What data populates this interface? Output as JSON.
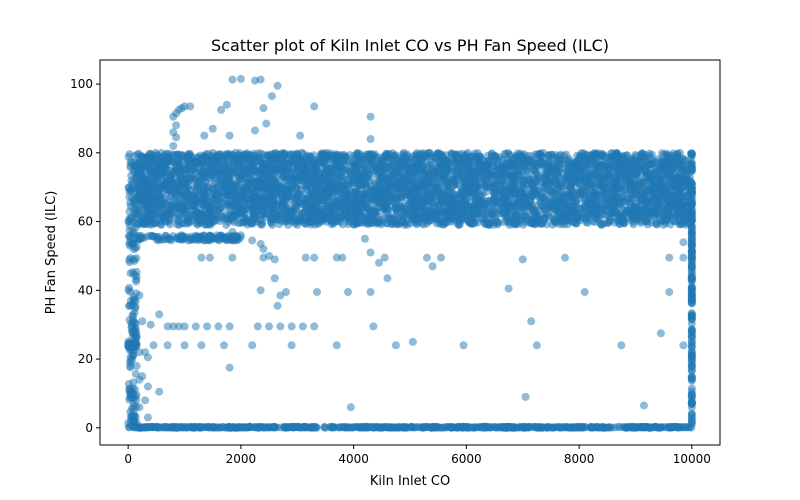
{
  "chart_data": {
    "type": "scatter",
    "title": "Scatter plot of Kiln Inlet CO vs PH Fan Speed (ILC)",
    "xlabel": "Kiln Inlet CO",
    "ylabel": "PH Fan Speed (ILC)",
    "xlim": [
      -500,
      10500
    ],
    "ylim": [
      -5,
      107
    ],
    "xticks": [
      0,
      2000,
      4000,
      6000,
      8000,
      10000
    ],
    "yticks": [
      0,
      20,
      40,
      60,
      80,
      100
    ],
    "grid": false,
    "legend": "none",
    "color": "#1f77b4",
    "alpha": 0.5,
    "marker": "circle",
    "bands": [
      {
        "x": [
          80,
          10000
        ],
        "y": [
          0,
          0.3
        ],
        "count": 700
      },
      {
        "x": [
          0,
          150
        ],
        "y": [
          0,
          80
        ],
        "count": 180
      },
      {
        "x": [
          10000,
          10000
        ],
        "y": [
          0,
          80
        ],
        "count": 180
      },
      {
        "x": [
          150,
          10000
        ],
        "y": [
          62,
          80
        ],
        "count": 4500
      },
      {
        "x": [
          150,
          10000
        ],
        "y": [
          59,
          62
        ],
        "count": 700
      },
      {
        "x": [
          150,
          2000
        ],
        "y": [
          54.5,
          56
        ],
        "count": 120
      },
      {
        "x": [
          0,
          150
        ],
        "y": [
          23.5,
          24.5
        ],
        "count": 40
      }
    ],
    "points": [
      {
        "x": 2000,
        "y": 101.5
      },
      {
        "x": 2250,
        "y": 101
      },
      {
        "x": 1850,
        "y": 101.3
      },
      {
        "x": 2350,
        "y": 101.3
      },
      {
        "x": 2650,
        "y": 99.5
      },
      {
        "x": 2550,
        "y": 96.5
      },
      {
        "x": 1750,
        "y": 94
      },
      {
        "x": 3300,
        "y": 93.5
      },
      {
        "x": 2400,
        "y": 93
      },
      {
        "x": 1650,
        "y": 92.5
      },
      {
        "x": 4300,
        "y": 90.5
      },
      {
        "x": 2450,
        "y": 88.5
      },
      {
        "x": 2250,
        "y": 86.5
      },
      {
        "x": 1800,
        "y": 85
      },
      {
        "x": 3050,
        "y": 85
      },
      {
        "x": 1000,
        "y": 93.5
      },
      {
        "x": 1100,
        "y": 93.5
      },
      {
        "x": 950,
        "y": 93
      },
      {
        "x": 900,
        "y": 92.5
      },
      {
        "x": 850,
        "y": 91.5
      },
      {
        "x": 800,
        "y": 90.5
      },
      {
        "x": 850,
        "y": 88
      },
      {
        "x": 800,
        "y": 86
      },
      {
        "x": 850,
        "y": 84.5
      },
      {
        "x": 1350,
        "y": 85
      },
      {
        "x": 1500,
        "y": 87
      },
      {
        "x": 4300,
        "y": 84
      },
      {
        "x": 800,
        "y": 82
      },
      {
        "x": 1850,
        "y": 57
      },
      {
        "x": 2000,
        "y": 56
      },
      {
        "x": 1900,
        "y": 54.5
      },
      {
        "x": 2200,
        "y": 54.5
      },
      {
        "x": 2350,
        "y": 53.5
      },
      {
        "x": 2400,
        "y": 52
      },
      {
        "x": 2500,
        "y": 50
      },
      {
        "x": 2600,
        "y": 49
      },
      {
        "x": 2400,
        "y": 49.5
      },
      {
        "x": 1300,
        "y": 49.5
      },
      {
        "x": 1450,
        "y": 49.5
      },
      {
        "x": 1850,
        "y": 49.5
      },
      {
        "x": 3150,
        "y": 49.5
      },
      {
        "x": 3300,
        "y": 49.5
      },
      {
        "x": 3700,
        "y": 49.5
      },
      {
        "x": 3800,
        "y": 49.5
      },
      {
        "x": 4200,
        "y": 55
      },
      {
        "x": 4300,
        "y": 51
      },
      {
        "x": 4450,
        "y": 48
      },
      {
        "x": 4550,
        "y": 49.5
      },
      {
        "x": 5300,
        "y": 49.5
      },
      {
        "x": 5400,
        "y": 47
      },
      {
        "x": 5550,
        "y": 49.5
      },
      {
        "x": 4600,
        "y": 43.5
      },
      {
        "x": 2600,
        "y": 43.5
      },
      {
        "x": 2700,
        "y": 38.5
      },
      {
        "x": 2800,
        "y": 39.5
      },
      {
        "x": 2650,
        "y": 35.5
      },
      {
        "x": 2350,
        "y": 40
      },
      {
        "x": 3350,
        "y": 39.5
      },
      {
        "x": 3900,
        "y": 39.5
      },
      {
        "x": 4300,
        "y": 39.5
      },
      {
        "x": 6750,
        "y": 40.5
      },
      {
        "x": 8100,
        "y": 39.5
      },
      {
        "x": 9600,
        "y": 39.5
      },
      {
        "x": 7000,
        "y": 49
      },
      {
        "x": 7750,
        "y": 49.5
      },
      {
        "x": 9600,
        "y": 49.5
      },
      {
        "x": 9850,
        "y": 49.5
      },
      {
        "x": 9850,
        "y": 54
      },
      {
        "x": 4350,
        "y": 29.5
      },
      {
        "x": 7150,
        "y": 31
      },
      {
        "x": 9450,
        "y": 27.5
      },
      {
        "x": 3700,
        "y": 24
      },
      {
        "x": 4750,
        "y": 24
      },
      {
        "x": 5050,
        "y": 25
      },
      {
        "x": 5950,
        "y": 24
      },
      {
        "x": 7250,
        "y": 24
      },
      {
        "x": 8750,
        "y": 24
      },
      {
        "x": 9850,
        "y": 24
      },
      {
        "x": 1300,
        "y": 24
      },
      {
        "x": 1700,
        "y": 24
      },
      {
        "x": 2200,
        "y": 24
      },
      {
        "x": 2900,
        "y": 24
      },
      {
        "x": 700,
        "y": 24
      },
      {
        "x": 1000,
        "y": 24
      },
      {
        "x": 450,
        "y": 24
      },
      {
        "x": 1800,
        "y": 17.5
      },
      {
        "x": 7050,
        "y": 9
      },
      {
        "x": 3950,
        "y": 6
      },
      {
        "x": 9150,
        "y": 6.5
      },
      {
        "x": 700,
        "y": 29.5
      },
      {
        "x": 800,
        "y": 29.5
      },
      {
        "x": 900,
        "y": 29.5
      },
      {
        "x": 1000,
        "y": 29.5
      },
      {
        "x": 1200,
        "y": 29.5
      },
      {
        "x": 1400,
        "y": 29.5
      },
      {
        "x": 1600,
        "y": 29.5
      },
      {
        "x": 1800,
        "y": 29.5
      },
      {
        "x": 2300,
        "y": 29.5
      },
      {
        "x": 2500,
        "y": 29.5
      },
      {
        "x": 2700,
        "y": 29.5
      },
      {
        "x": 2900,
        "y": 29.5
      },
      {
        "x": 3100,
        "y": 29.5
      },
      {
        "x": 3300,
        "y": 29.5
      },
      {
        "x": 200,
        "y": 38.5
      },
      {
        "x": 150,
        "y": 44
      },
      {
        "x": 100,
        "y": 49
      },
      {
        "x": 150,
        "y": 52.5
      },
      {
        "x": 100,
        "y": 55
      },
      {
        "x": 250,
        "y": 31
      },
      {
        "x": 400,
        "y": 30
      },
      {
        "x": 550,
        "y": 33
      },
      {
        "x": 150,
        "y": 26.5
      },
      {
        "x": 100,
        "y": 38
      },
      {
        "x": 350,
        "y": 20.5
      },
      {
        "x": 300,
        "y": 22
      },
      {
        "x": 200,
        "y": 22
      },
      {
        "x": 150,
        "y": 18
      },
      {
        "x": 250,
        "y": 15
      },
      {
        "x": 200,
        "y": 14
      },
      {
        "x": 350,
        "y": 12
      },
      {
        "x": 550,
        "y": 10.5
      },
      {
        "x": 150,
        "y": 9.5
      },
      {
        "x": 100,
        "y": 7
      },
      {
        "x": 200,
        "y": 6
      },
      {
        "x": 300,
        "y": 8
      },
      {
        "x": 100,
        "y": 4.5
      },
      {
        "x": 350,
        "y": 3
      },
      {
        "x": 150,
        "y": 1.5
      },
      {
        "x": 1300,
        "y": 55
      },
      {
        "x": 1500,
        "y": 55
      },
      {
        "x": 10000,
        "y": 54
      },
      {
        "x": 10000,
        "y": 53
      },
      {
        "x": 10000,
        "y": 49.5
      },
      {
        "x": 10000,
        "y": 39.5
      },
      {
        "x": 10000,
        "y": 32
      },
      {
        "x": 10000,
        "y": 31.5
      },
      {
        "x": 10000,
        "y": 28
      },
      {
        "x": 10000,
        "y": 25
      },
      {
        "x": 10000,
        "y": 22
      },
      {
        "x": 10000,
        "y": 20
      },
      {
        "x": 10000,
        "y": 14
      },
      {
        "x": 10000,
        "y": 11.5
      },
      {
        "x": 10000,
        "y": 9
      },
      {
        "x": 10000,
        "y": 4
      },
      {
        "x": 10000,
        "y": 2
      }
    ]
  }
}
